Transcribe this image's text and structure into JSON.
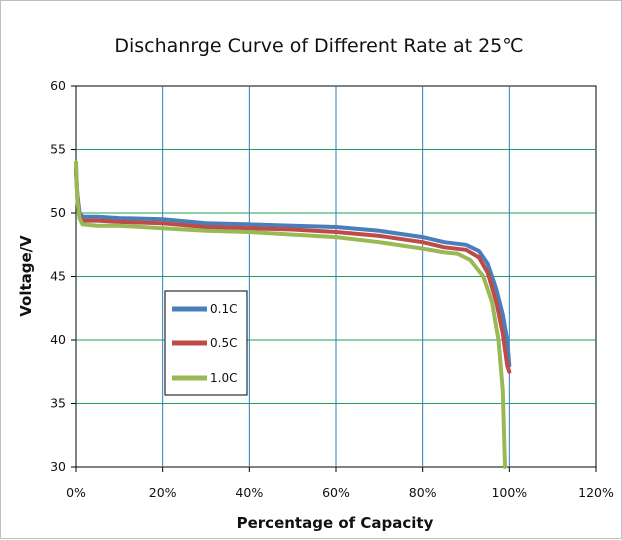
{
  "chart_data": {
    "type": "line",
    "title": "Dischanrge Curve of Different Rate at 25℃",
    "xlabel": "Percentage of Capacity",
    "ylabel": "Voltage/V",
    "xlim": [
      0,
      120
    ],
    "ylim": [
      30,
      60
    ],
    "x_ticks": [
      "0%",
      "20%",
      "40%",
      "60%",
      "80%",
      "100%",
      "120%"
    ],
    "y_ticks": [
      "30",
      "35",
      "40",
      "45",
      "50",
      "55",
      "60"
    ],
    "grid": true,
    "legend_position": "left-middle",
    "series": [
      {
        "name": "0.1C",
        "color": "#4a7ebb",
        "points": [
          [
            0,
            53.2
          ],
          [
            0.3,
            51.5
          ],
          [
            0.8,
            50.0
          ],
          [
            1.5,
            49.7
          ],
          [
            5,
            49.7
          ],
          [
            10,
            49.6
          ],
          [
            20,
            49.5
          ],
          [
            30,
            49.2
          ],
          [
            40,
            49.1
          ],
          [
            50,
            49.0
          ],
          [
            60,
            48.9
          ],
          [
            70,
            48.6
          ],
          [
            80,
            48.1
          ],
          [
            85,
            47.7
          ],
          [
            90,
            47.5
          ],
          [
            93,
            47.0
          ],
          [
            95,
            46.0
          ],
          [
            97,
            44.0
          ],
          [
            98.5,
            42.0
          ],
          [
            99.5,
            40.0
          ],
          [
            100,
            38.0
          ]
        ]
      },
      {
        "name": "0.5C",
        "color": "#be4b48",
        "points": [
          [
            0,
            53.5
          ],
          [
            0.3,
            51.3
          ],
          [
            0.8,
            49.8
          ],
          [
            1.5,
            49.4
          ],
          [
            5,
            49.4
          ],
          [
            10,
            49.3
          ],
          [
            20,
            49.2
          ],
          [
            30,
            48.9
          ],
          [
            40,
            48.8
          ],
          [
            50,
            48.7
          ],
          [
            60,
            48.5
          ],
          [
            70,
            48.2
          ],
          [
            80,
            47.7
          ],
          [
            85,
            47.3
          ],
          [
            90,
            47.1
          ],
          [
            93,
            46.5
          ],
          [
            95,
            45.3
          ],
          [
            97,
            43.0
          ],
          [
            98.5,
            40.5
          ],
          [
            99.5,
            38.0
          ],
          [
            100,
            37.5
          ]
        ]
      },
      {
        "name": "1.0C",
        "color": "#98b954",
        "points": [
          [
            0,
            54.0
          ],
          [
            0.3,
            51.0
          ],
          [
            0.8,
            49.6
          ],
          [
            1.5,
            49.1
          ],
          [
            5,
            49.0
          ],
          [
            10,
            49.0
          ],
          [
            20,
            48.8
          ],
          [
            30,
            48.6
          ],
          [
            40,
            48.5
          ],
          [
            50,
            48.3
          ],
          [
            60,
            48.1
          ],
          [
            70,
            47.7
          ],
          [
            80,
            47.2
          ],
          [
            85,
            46.9
          ],
          [
            88,
            46.8
          ],
          [
            91,
            46.3
          ],
          [
            94,
            45.0
          ],
          [
            96,
            43.0
          ],
          [
            97.5,
            40.0
          ],
          [
            98.5,
            36.0
          ],
          [
            99,
            30.0
          ]
        ]
      }
    ]
  }
}
